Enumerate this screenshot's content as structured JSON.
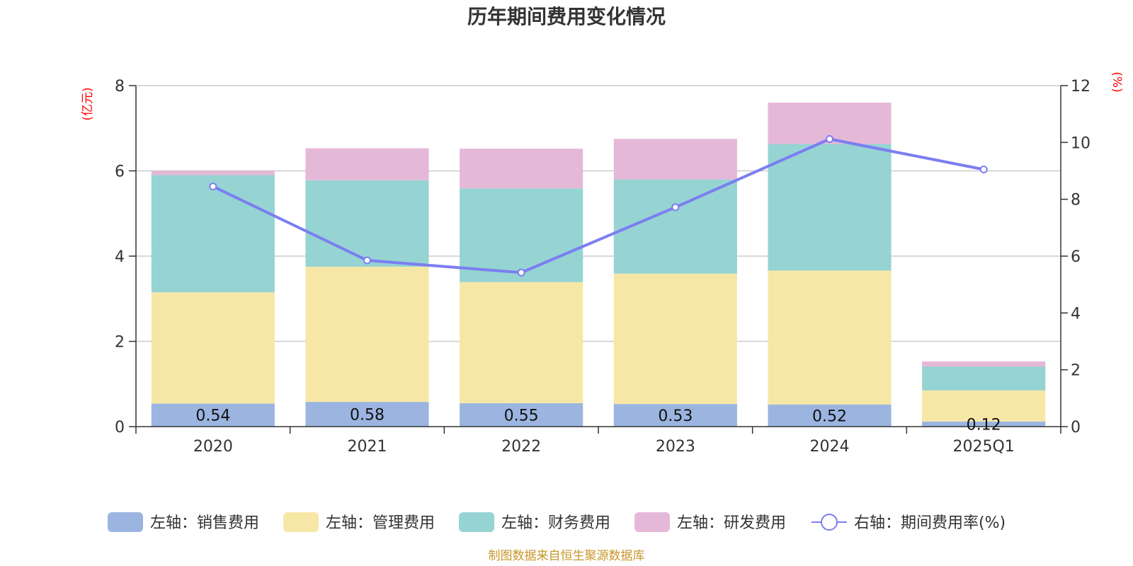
{
  "chart_data": {
    "type": "bar",
    "title": "历年期间费用变化情况",
    "categories": [
      "2020",
      "2021",
      "2022",
      "2023",
      "2024",
      "2025Q1"
    ],
    "left_axis": {
      "unit": "(亿元)",
      "ylim": [
        0,
        8
      ],
      "ticks": [
        "0",
        "2",
        "4",
        "6",
        "8"
      ]
    },
    "right_axis": {
      "unit": "(%)",
      "ylim": [
        0,
        12
      ],
      "ticks": [
        "0",
        "2",
        "4",
        "6",
        "8",
        "10",
        "12"
      ]
    },
    "stack_series": [
      {
        "name": "左轴：销售费用",
        "color": "#9bb5e0",
        "values": [
          0.54,
          0.58,
          0.55,
          0.53,
          0.52,
          0.12
        ],
        "labels": [
          "0.54",
          "0.58",
          "0.55",
          "0.53",
          "0.52",
          "0.12"
        ]
      },
      {
        "name": "左轴：管理费用",
        "color": "#f7e7a6",
        "values": [
          2.61,
          3.17,
          2.84,
          3.06,
          3.14,
          0.73
        ]
      },
      {
        "name": "左轴：财务费用",
        "color": "#96d3d3",
        "values": [
          2.75,
          2.03,
          2.2,
          2.21,
          2.97,
          0.56
        ]
      },
      {
        "name": "左轴：研发费用",
        "color": "#e6b8d8",
        "values": [
          0.1,
          0.75,
          0.93,
          0.95,
          0.97,
          0.12
        ]
      }
    ],
    "line_series": {
      "name": "右轴：期间费用率(%)",
      "color": "#7b7ef0",
      "values": [
        8.45,
        5.85,
        5.42,
        7.72,
        10.12,
        9.05
      ]
    },
    "grid": true,
    "legend_position": "bottom"
  },
  "footer": {
    "source": "制图数据来自恒生聚源数据库"
  }
}
